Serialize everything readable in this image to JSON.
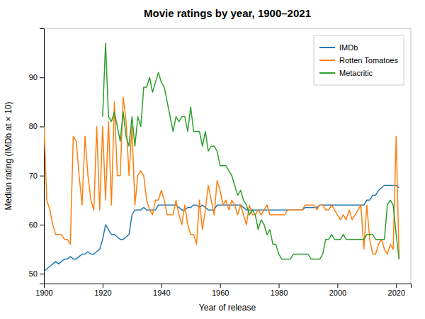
{
  "chart_data": {
    "type": "line",
    "title": "Movie ratings by year, 1900–2021",
    "xlabel": "Year of release",
    "ylabel": "Median rating (IMDb at × 10)",
    "xlim": [
      1900,
      2025
    ],
    "xticks": [
      1900,
      1920,
      1940,
      1960,
      1980,
      2000,
      2020
    ],
    "ylim": [
      48,
      100
    ],
    "yticks": [
      50,
      60,
      70,
      80,
      90
    ],
    "grid": false,
    "legend": "top-right",
    "x": [
      1900,
      1901,
      1902,
      1903,
      1904,
      1905,
      1906,
      1907,
      1908,
      1909,
      1910,
      1911,
      1912,
      1913,
      1914,
      1915,
      1916,
      1917,
      1918,
      1919,
      1920,
      1921,
      1922,
      1923,
      1924,
      1925,
      1926,
      1927,
      1928,
      1929,
      1930,
      1931,
      1932,
      1933,
      1934,
      1935,
      1936,
      1937,
      1938,
      1939,
      1940,
      1941,
      1942,
      1943,
      1944,
      1945,
      1946,
      1947,
      1948,
      1949,
      1950,
      1951,
      1952,
      1953,
      1954,
      1955,
      1956,
      1957,
      1958,
      1959,
      1960,
      1961,
      1962,
      1963,
      1964,
      1965,
      1966,
      1967,
      1968,
      1969,
      1970,
      1971,
      1972,
      1973,
      1974,
      1975,
      1976,
      1977,
      1978,
      1979,
      1980,
      1981,
      1982,
      1983,
      1984,
      1985,
      1986,
      1987,
      1988,
      1989,
      1990,
      1991,
      1992,
      1993,
      1994,
      1995,
      1996,
      1997,
      1998,
      1999,
      2000,
      2001,
      2002,
      2003,
      2004,
      2005,
      2006,
      2007,
      2008,
      2009,
      2010,
      2011,
      2012,
      2013,
      2014,
      2015,
      2016,
      2017,
      2018,
      2019,
      2020,
      2021
    ],
    "series": [
      {
        "name": "IMDb",
        "color": "#1f77b4",
        "values": [
          50.5,
          51.0,
          51.5,
          52.0,
          52.5,
          52.0,
          52.5,
          53.0,
          53.0,
          53.5,
          53.0,
          53.0,
          53.5,
          54.0,
          54.0,
          54.5,
          54.0,
          54.0,
          54.5,
          55.0,
          57.0,
          60.0,
          59.0,
          58.0,
          58.0,
          57.5,
          57.0,
          57.0,
          57.5,
          58.0,
          62.0,
          63.0,
          63.0,
          63.0,
          63.5,
          63.0,
          63.0,
          63.0,
          63.0,
          64.0,
          64.0,
          64.0,
          64.0,
          64.0,
          64.0,
          64.0,
          63.5,
          63.0,
          63.0,
          63.5,
          63.5,
          64.0,
          64.0,
          63.5,
          64.0,
          63.5,
          63.0,
          63.0,
          63.0,
          64.0,
          64.0,
          64.0,
          64.0,
          64.0,
          64.0,
          64.0,
          64.0,
          64.0,
          63.5,
          63.0,
          63.0,
          63.0,
          63.0,
          63.0,
          63.0,
          63.0,
          63.0,
          63.0,
          63.0,
          63.0,
          63.0,
          63.0,
          63.0,
          63.0,
          63.0,
          63.0,
          63.0,
          63.0,
          63.0,
          63.5,
          63.5,
          63.5,
          63.5,
          63.5,
          64.0,
          64.0,
          64.0,
          64.0,
          64.0,
          64.0,
          64.0,
          64.0,
          64.0,
          64.0,
          64.0,
          64.0,
          64.0,
          64.0,
          64.0,
          64.0,
          65.0,
          65.0,
          66.0,
          66.0,
          67.0,
          67.5,
          68.0,
          68.0,
          68.0,
          68.0,
          68.0,
          67.5
        ]
      },
      {
        "name": "Rotten Tomatoes",
        "color": "#ff7f0e",
        "values": [
          80.0,
          65.0,
          63.0,
          60.0,
          58.0,
          58.0,
          58.0,
          57.0,
          57.0,
          56.0,
          78.0,
          77.0,
          70.0,
          64.0,
          78.0,
          70.0,
          65.0,
          63.0,
          80.0,
          63.0,
          80.0,
          65.0,
          81.0,
          64.0,
          85.0,
          70.0,
          70.0,
          86.0,
          81.0,
          70.0,
          80.0,
          64.0,
          70.0,
          71.0,
          70.0,
          65.0,
          63.0,
          62.0,
          65.0,
          65.0,
          67.0,
          65.0,
          62.0,
          62.0,
          62.0,
          65.0,
          62.0,
          60.0,
          64.0,
          60.0,
          58.0,
          58.0,
          56.0,
          65.0,
          59.0,
          63.0,
          68.0,
          65.0,
          62.0,
          69.0,
          67.0,
          64.0,
          65.0,
          63.0,
          65.0,
          64.0,
          62.0,
          64.0,
          62.0,
          60.0,
          64.0,
          62.0,
          62.0,
          63.0,
          62.0,
          63.0,
          64.0,
          62.0,
          62.0,
          62.0,
          62.0,
          62.0,
          62.0,
          63.0,
          63.0,
          63.0,
          63.0,
          63.0,
          63.0,
          64.0,
          64.0,
          64.0,
          64.0,
          63.0,
          64.0,
          64.0,
          63.0,
          63.0,
          64.0,
          63.0,
          62.0,
          61.0,
          62.0,
          61.0,
          63.0,
          61.0,
          62.0,
          63.0,
          64.0,
          55.0,
          64.0,
          57.0,
          54.0,
          54.0,
          56.0,
          57.0,
          55.0,
          54.0,
          56.0,
          55.0,
          78.0,
          53.0
        ]
      },
      {
        "name": "Metacritic",
        "color": "#2ca02c",
        "values": [
          null,
          null,
          null,
          null,
          null,
          null,
          null,
          null,
          null,
          null,
          null,
          null,
          null,
          null,
          null,
          null,
          null,
          null,
          null,
          null,
          82.0,
          97.0,
          82.0,
          81.0,
          83.0,
          80.0,
          77.0,
          83.0,
          78.0,
          76.0,
          82.0,
          76.0,
          82.0,
          80.0,
          88.0,
          88.0,
          90.0,
          87.0,
          89.0,
          91.0,
          89.0,
          88.0,
          85.0,
          82.0,
          79.0,
          82.0,
          81.0,
          82.0,
          82.0,
          79.0,
          84.0,
          79.0,
          79.0,
          79.0,
          76.0,
          79.0,
          75.0,
          76.0,
          76.0,
          75.0,
          72.0,
          72.0,
          72.0,
          71.0,
          70.0,
          68.0,
          66.0,
          67.0,
          65.0,
          64.0,
          62.0,
          63.0,
          62.0,
          59.0,
          61.0,
          60.0,
          58.0,
          59.0,
          56.0,
          56.0,
          54.0,
          53.0,
          53.0,
          53.0,
          53.0,
          54.0,
          54.0,
          54.0,
          54.0,
          54.0,
          54.0,
          53.0,
          53.0,
          53.0,
          53.0,
          54.0,
          57.0,
          57.0,
          58.0,
          57.0,
          57.0,
          57.0,
          58.0,
          57.0,
          57.0,
          57.0,
          57.0,
          57.0,
          57.0,
          57.0,
          58.0,
          58.0,
          58.0,
          57.0,
          57.0,
          57.0,
          57.0,
          64.0,
          65.0,
          64.0,
          58.0,
          53.0
        ]
      }
    ]
  }
}
